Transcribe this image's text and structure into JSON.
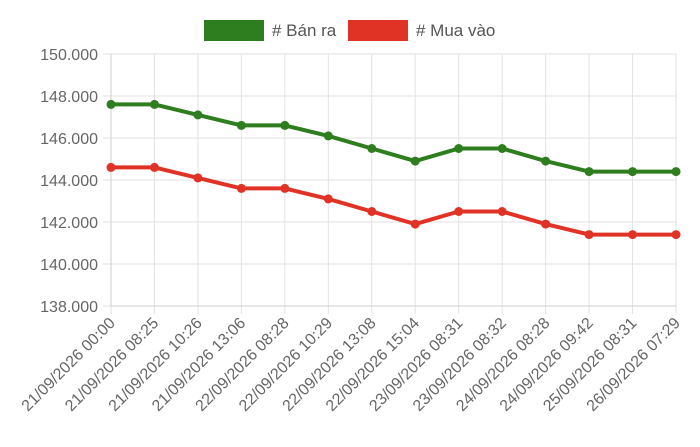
{
  "chart_data": {
    "type": "line",
    "title": "",
    "xlabel": "",
    "ylabel": "",
    "categories": [
      "21/09/2026 00:00",
      "21/09/2026 08:25",
      "21/09/2026 10:26",
      "21/09/2026 13:06",
      "22/09/2026 08:28",
      "22/09/2026 10:29",
      "22/09/2026 13:08",
      "22/09/2026 15:04",
      "23/09/2026 08:31",
      "23/09/2026 08:32",
      "24/09/2026 08:28",
      "24/09/2026 09:42",
      "25/09/2026 08:31",
      "26/09/2026 07:29"
    ],
    "series": [
      {
        "name": "# Bán ra",
        "color": "#2e7d1f",
        "values": [
          147600,
          147600,
          147100,
          146600,
          146600,
          146100,
          145500,
          144900,
          145500,
          145500,
          144900,
          144400,
          144400,
          144400
        ]
      },
      {
        "name": "# Mua vào",
        "color": "#e03326",
        "values": [
          144600,
          144600,
          144100,
          143600,
          143600,
          143100,
          142500,
          141900,
          142500,
          142500,
          141900,
          141400,
          141400,
          141400
        ]
      }
    ],
    "ylim": [
      138000,
      150000
    ],
    "yticks": [
      138000,
      140000,
      142000,
      144000,
      146000,
      148000,
      150000
    ],
    "ytick_labels": [
      "138.000",
      "140.000",
      "142.000",
      "144.000",
      "146.000",
      "148.000",
      "150.000"
    ],
    "grid": true,
    "legend_position": "top-center"
  }
}
